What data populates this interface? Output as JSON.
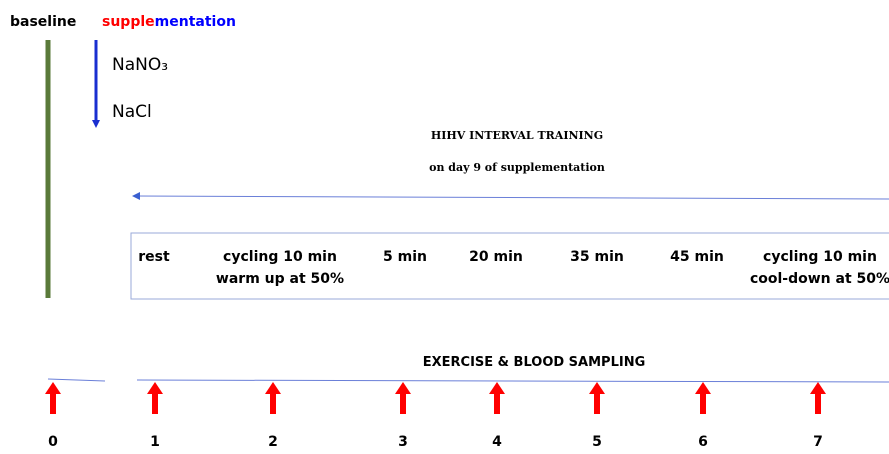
{
  "header": {
    "baseline": "baseline",
    "supplementation": [
      "supple",
      "mentation"
    ]
  },
  "legend": [
    {
      "label": "NaNO₃",
      "color": "#ff0000"
    },
    {
      "label": "NaCl",
      "color": "#0000ff"
    }
  ],
  "training": {
    "title": "HIHV INTERVAL TRAINING",
    "subtitle": "on day 9 of supplementation"
  },
  "phases": [
    {
      "lines": [
        "rest"
      ]
    },
    {
      "lines": [
        "cycling 10 min",
        "warm up at 50%"
      ]
    },
    {
      "lines": [
        "5 min"
      ]
    },
    {
      "lines": [
        "20 min"
      ]
    },
    {
      "lines": [
        "35 min"
      ]
    },
    {
      "lines": [
        "45 min"
      ]
    },
    {
      "lines": [
        "cycling 10 min",
        "cool-down at 50%"
      ]
    }
  ],
  "sampling": {
    "title": "EXERCISE & BLOOD SAMPLING",
    "points": [
      "0",
      "1",
      "2",
      "3",
      "4",
      "5",
      "6",
      "7"
    ]
  }
}
